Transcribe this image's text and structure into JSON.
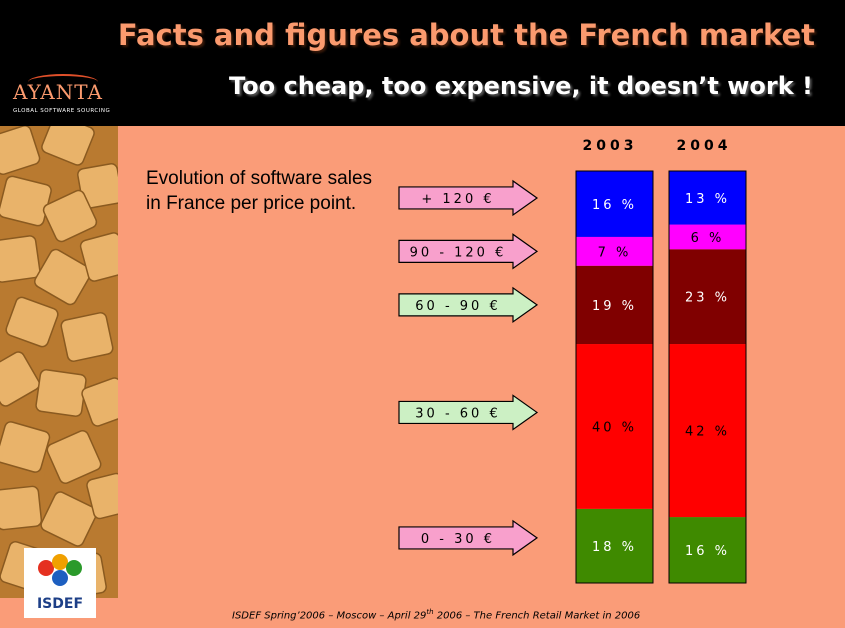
{
  "header": {
    "title": "Facts and figures about the French market",
    "subtitle": "Too cheap, too expensive, it doesn’t work !"
  },
  "logo": {
    "name": "AYANTA",
    "tagline": "GLOBAL SOFTWARE SOURCING"
  },
  "description": "Evolution of software sales in France per price point.",
  "isdef_logo": "ISDEF",
  "footer": {
    "before": "ISDEF Spring’2006 – Moscow – April 29",
    "sup": "th",
    "after": " 2006 – The French Retail Market in 2006"
  },
  "colors": {
    "background": "#fa9c78",
    "header": "#000000",
    "title": "#fb9a6e",
    "arrow_pink": "#f8a0cc",
    "arrow_green": "#ccf0c4"
  },
  "chart_data": {
    "type": "bar",
    "stacked": true,
    "unit": "%",
    "categories": [
      "2003",
      "2004"
    ],
    "segments_bottom_to_top": [
      {
        "label": "0 - 30 €",
        "color": "#3f8a00",
        "arrow_color": "#f8a0cc",
        "values": [
          18,
          16
        ]
      },
      {
        "label": "30 - 60 €",
        "color": "#ff0000",
        "arrow_color": "#ccf0c4",
        "values": [
          40,
          42
        ]
      },
      {
        "label": "60 - 90 €",
        "color": "#800000",
        "arrow_color": "#ccf0c4",
        "values": [
          19,
          23
        ]
      },
      {
        "label": "90 - 120 €",
        "color": "#ff00ff",
        "arrow_color": "#f8a0cc",
        "values": [
          7,
          6
        ]
      },
      {
        "label": "+ 120 €",
        "color": "#0000ff",
        "arrow_color": "#f8a0cc",
        "values": [
          16,
          13
        ]
      }
    ],
    "data_labels": [
      [
        "18 %",
        "40 %",
        "19 %",
        "7 %",
        "16 %"
      ],
      [
        "16 %",
        "42 %",
        "23 %",
        "6 %",
        "13 %"
      ]
    ],
    "label_colors": {
      "0 - 30 €": "#ffffff",
      "30 - 60 €": "#000000",
      "60 - 90 €": "#ffffff",
      "90 - 120 €": "#000000",
      "+ 120 €": "#ffffff"
    }
  }
}
